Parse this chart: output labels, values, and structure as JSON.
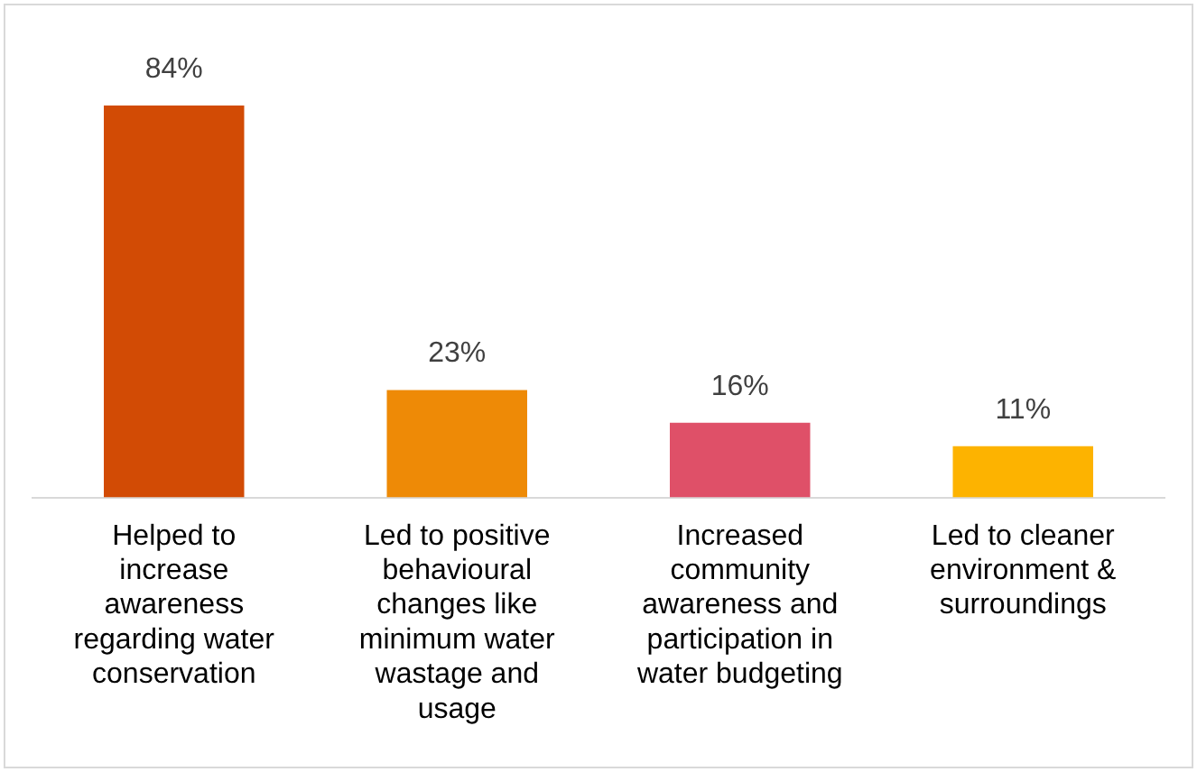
{
  "chart_data": {
    "type": "bar",
    "categories": [
      "Helped to increase awareness regarding water conservation",
      "Led to positive behavioural changes like minimum water wastage and usage",
      "Increased community awareness and participation in water budgeting",
      "Led to cleaner environment & surroundings"
    ],
    "values": [
      84,
      23,
      16,
      11
    ],
    "colors": [
      "#d24b05",
      "#ee8a06",
      "#df5068",
      "#fdb300"
    ],
    "value_labels": [
      "84%",
      "23%",
      "16%",
      "11%"
    ],
    "grid": false,
    "legend": false
  }
}
